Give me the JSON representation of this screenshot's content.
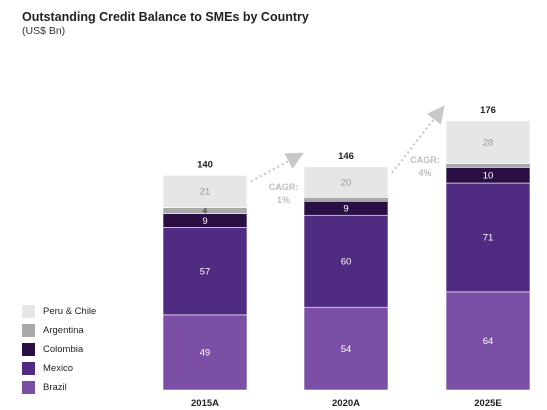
{
  "chart_data": {
    "type": "bar",
    "stacked": true,
    "title": "Outstanding Credit Balance to SMEs by Country",
    "subtitle": "(US$ Bn)",
    "categories": [
      "2015A",
      "2020A",
      "2025E"
    ],
    "totals": [
      140,
      146,
      176
    ],
    "series": [
      {
        "name": "Brazil",
        "values": [
          49,
          54,
          64
        ],
        "color": "#7b4fa6",
        "label_color": "#ffffff"
      },
      {
        "name": "Mexico",
        "values": [
          57,
          60,
          71
        ],
        "color": "#4f2c82",
        "label_color": "#ffffff"
      },
      {
        "name": "Colombia",
        "values": [
          9,
          9,
          10
        ],
        "color": "#2a0f45",
        "label_color": "#ffffff"
      },
      {
        "name": "Argentina",
        "values": [
          4,
          null,
          null
        ],
        "color": "#a9a9a9",
        "label_color": "#333333"
      },
      {
        "name": "Peru & Chile",
        "values": [
          21,
          20,
          28
        ],
        "color": "#e6e6e6",
        "label_color": "#999999"
      }
    ],
    "cagr_annotations": [
      {
        "label": "CAGR:",
        "value": "1%"
      },
      {
        "label": "CAGR:",
        "value": "4%"
      }
    ]
  },
  "legend_order": [
    "Peru & Chile",
    "Argentina",
    "Colombia",
    "Mexico",
    "Brazil"
  ]
}
